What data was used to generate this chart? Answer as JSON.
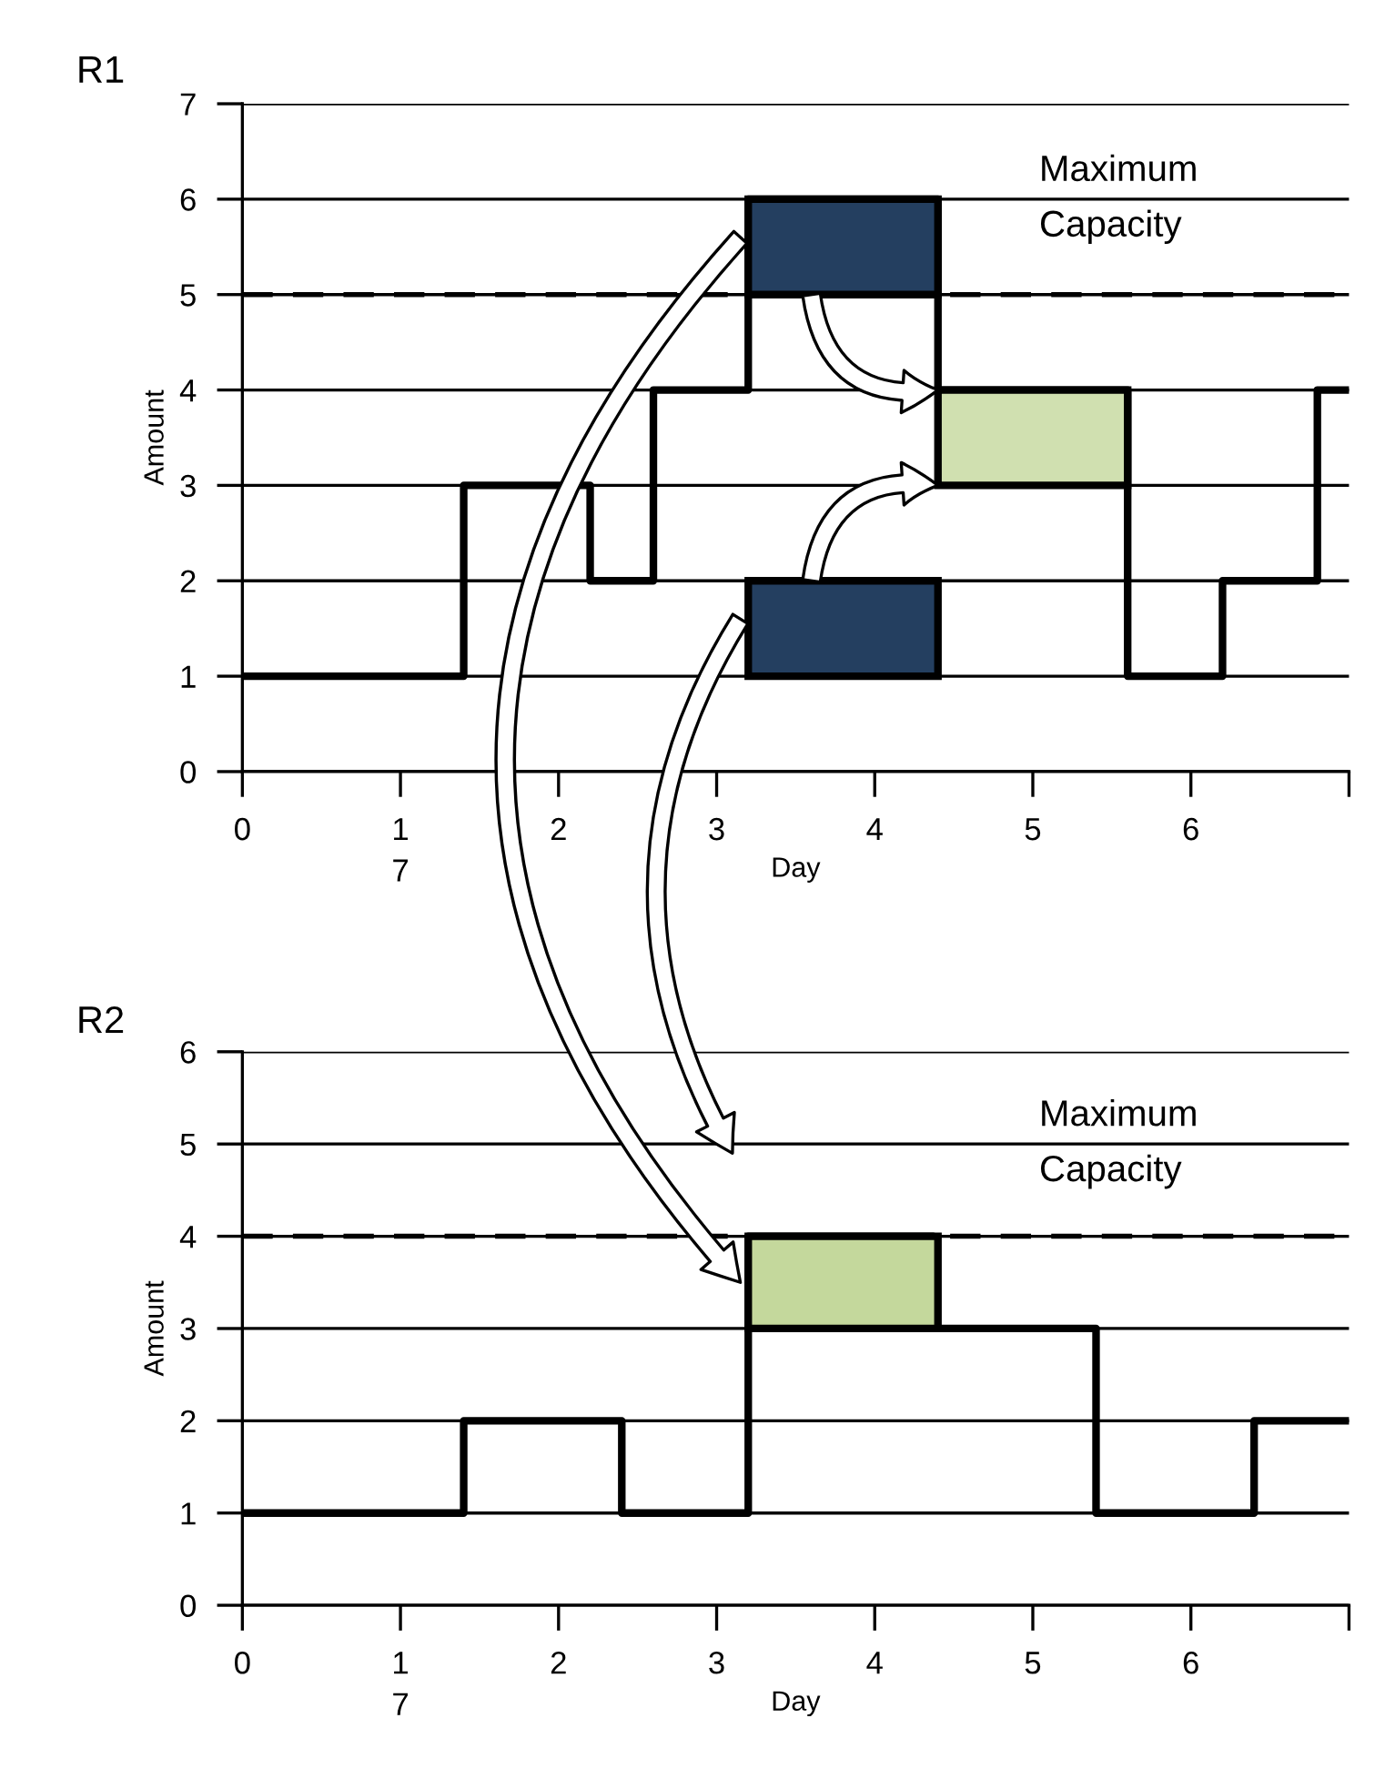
{
  "chart_data": [
    {
      "type": "step",
      "title": "R1",
      "xlabel": "Day",
      "ylabel": "Amount",
      "xlim": [
        0,
        7
      ],
      "ylim": [
        0,
        7
      ],
      "annotations": [
        "7"
      ],
      "xticks": [
        0,
        1,
        2,
        3,
        4,
        5,
        6,
        {
          "value": 7,
          "label": null
        }
      ],
      "yticks": [
        0,
        1,
        2,
        3,
        4,
        5,
        6,
        7
      ],
      "grid": "y",
      "legend": false,
      "ref_lines": [
        {
          "axis": "y",
          "value": 5,
          "label": "Maximum\nCapacity",
          "line_style": "dashed",
          "color": "#000000"
        }
      ],
      "series": [
        {
          "color": "#000000",
          "x": [
            0,
            1.4,
            2.2,
            2.6,
            3.2,
            4.4,
            5.6,
            6.2,
            6.8,
            7
          ],
          "values": [
            1,
            3,
            2,
            4,
            6,
            4,
            1,
            2,
            4,
            4
          ]
        },
        {
          "type": "bar",
          "color": "#243f60",
          "x": [
            3.8
          ],
          "values": [
            1
          ],
          "base": [
            5
          ]
        },
        {
          "type": "bar",
          "color": "#243f60",
          "x": [
            3.8
          ],
          "values": [
            1
          ],
          "base": [
            1
          ]
        },
        {
          "type": "bar",
          "color": "#d0e0b0",
          "x": [
            5.0
          ],
          "values": [
            1
          ],
          "base": [
            3
          ]
        }
      ]
    },
    {
      "type": "step",
      "title": "R2",
      "xlabel": "Day",
      "ylabel": "Amount",
      "xlim": [
        0,
        7
      ],
      "ylim": [
        0,
        6
      ],
      "annotations": [
        "7"
      ],
      "xticks": [
        0,
        1,
        2,
        3,
        4,
        5,
        6,
        {
          "value": 7,
          "label": null
        }
      ],
      "yticks": [
        0,
        1,
        2,
        3,
        4,
        5,
        6
      ],
      "grid": "y",
      "legend": false,
      "ref_lines": [
        {
          "axis": "y",
          "value": 4,
          "label": "Maximum\nCapacity",
          "line_style": "dashed",
          "color": "#000000"
        }
      ],
      "series": [
        {
          "color": "#000000",
          "x": [
            0,
            1.4,
            2.4,
            3.2,
            4.37,
            5.4,
            6.4,
            7
          ],
          "values": [
            1,
            2,
            1,
            4,
            3,
            1,
            2,
            2
          ]
        },
        {
          "type": "bar",
          "color": "#c4d89c",
          "x": [
            3.8
          ],
          "values": [
            1
          ],
          "base": [
            3
          ]
        }
      ]
    }
  ]
}
